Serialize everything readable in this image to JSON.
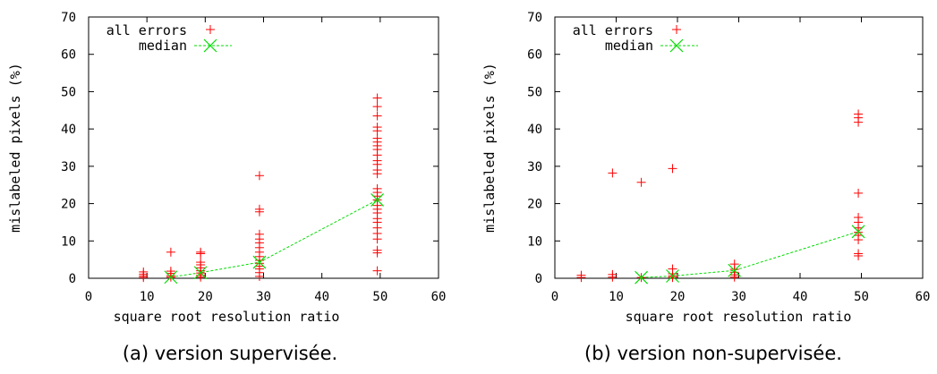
{
  "colors": {
    "errors": "#ff0000",
    "median": "#00dd00",
    "axis": "#000000"
  },
  "chart_data": [
    {
      "type": "scatter",
      "caption": "(a) version supervisée.",
      "xlabel": "square root resolution ratio",
      "ylabel": "mislabeled pixels (%)",
      "xlim": [
        0,
        60
      ],
      "ylim": [
        0,
        70
      ],
      "xticks": [
        0,
        10,
        20,
        30,
        40,
        50,
        60
      ],
      "yticks": [
        0,
        10,
        20,
        30,
        40,
        50,
        60,
        70
      ],
      "grid": false,
      "legend_position": "top-left",
      "series": [
        {
          "name": "all errors",
          "marker": "plus",
          "points": [
            [
              9.4,
              0.2
            ],
            [
              9.4,
              0.6
            ],
            [
              9.4,
              1.1
            ],
            [
              9.4,
              1.7
            ],
            [
              14.1,
              0.3
            ],
            [
              14.1,
              0.7
            ],
            [
              14.1,
              1.3
            ],
            [
              14.1,
              1.9
            ],
            [
              14.1,
              7.0
            ],
            [
              19.2,
              0.3
            ],
            [
              19.2,
              0.8
            ],
            [
              19.2,
              1.4
            ],
            [
              19.2,
              2.0
            ],
            [
              19.2,
              2.8
            ],
            [
              19.2,
              3.6
            ],
            [
              19.2,
              4.3
            ],
            [
              19.2,
              6.6
            ],
            [
              19.2,
              7.0
            ],
            [
              29.3,
              0.5
            ],
            [
              29.3,
              1.5
            ],
            [
              29.3,
              2.5
            ],
            [
              29.3,
              3.2
            ],
            [
              29.3,
              4.0
            ],
            [
              29.3,
              4.8
            ],
            [
              29.3,
              5.8
            ],
            [
              29.3,
              7.0
            ],
            [
              29.3,
              8.2
            ],
            [
              29.3,
              9.5
            ],
            [
              29.3,
              10.5
            ],
            [
              29.3,
              11.8
            ],
            [
              29.3,
              17.8
            ],
            [
              29.3,
              18.5
            ],
            [
              29.3,
              27.5
            ],
            [
              49.5,
              2.0
            ],
            [
              49.5,
              6.8
            ],
            [
              49.5,
              7.5
            ],
            [
              49.5,
              10.5
            ],
            [
              49.5,
              12.0
            ],
            [
              49.5,
              13.5
            ],
            [
              49.5,
              15.0
            ],
            [
              49.5,
              16.0
            ],
            [
              49.5,
              17.5
            ],
            [
              49.5,
              18.5
            ],
            [
              49.5,
              19.5
            ],
            [
              49.5,
              21.0
            ],
            [
              49.5,
              22.0
            ],
            [
              49.5,
              23.0
            ],
            [
              49.5,
              24.0
            ],
            [
              49.5,
              28.0
            ],
            [
              49.5,
              29.0
            ],
            [
              49.5,
              30.5
            ],
            [
              49.5,
              31.5
            ],
            [
              49.5,
              33.0
            ],
            [
              49.5,
              34.5
            ],
            [
              49.5,
              35.5
            ],
            [
              49.5,
              36.5
            ],
            [
              49.5,
              37.5
            ],
            [
              49.5,
              39.5
            ],
            [
              49.5,
              40.5
            ],
            [
              49.5,
              43.5
            ],
            [
              49.5,
              46.0
            ],
            [
              49.5,
              48.3
            ]
          ]
        },
        {
          "name": "median",
          "marker": "cross",
          "line": "dashed",
          "points": [
            [
              14.1,
              0.3
            ],
            [
              19.2,
              1.5
            ],
            [
              29.3,
              4.3
            ],
            [
              49.5,
              21.0
            ]
          ]
        }
      ]
    },
    {
      "type": "scatter",
      "caption": "(b) version non-supervisée.",
      "xlabel": "square root resolution ratio",
      "ylabel": "mislabeled pixels (%)",
      "xlim": [
        0,
        60
      ],
      "ylim": [
        0,
        70
      ],
      "xticks": [
        0,
        10,
        20,
        30,
        40,
        50,
        60
      ],
      "yticks": [
        0,
        10,
        20,
        30,
        40,
        50,
        60,
        70
      ],
      "grid": false,
      "legend_position": "top-left",
      "series": [
        {
          "name": "all errors",
          "marker": "plus",
          "points": [
            [
              4.3,
              0.2
            ],
            [
              4.3,
              0.8
            ],
            [
              9.4,
              0.3
            ],
            [
              9.4,
              1.0
            ],
            [
              9.4,
              28.2
            ],
            [
              14.1,
              0.2
            ],
            [
              14.1,
              25.7
            ],
            [
              19.2,
              0.2
            ],
            [
              19.2,
              0.6
            ],
            [
              19.2,
              1.2
            ],
            [
              19.2,
              2.5
            ],
            [
              19.2,
              29.4
            ],
            [
              29.3,
              0.3
            ],
            [
              29.3,
              0.9
            ],
            [
              29.3,
              1.6
            ],
            [
              29.3,
              2.4
            ],
            [
              29.3,
              3.8
            ],
            [
              49.5,
              6.0
            ],
            [
              49.5,
              6.6
            ],
            [
              49.5,
              10.3
            ],
            [
              49.5,
              11.5
            ],
            [
              49.5,
              12.3
            ],
            [
              49.5,
              13.5
            ],
            [
              49.5,
              15.0
            ],
            [
              49.5,
              16.3
            ],
            [
              49.5,
              22.8
            ],
            [
              49.5,
              41.8
            ],
            [
              49.5,
              43.0
            ],
            [
              49.5,
              44.0
            ]
          ]
        },
        {
          "name": "median",
          "marker": "cross",
          "line": "dashed",
          "points": [
            [
              14.1,
              0.2
            ],
            [
              19.2,
              0.6
            ],
            [
              29.3,
              2.1
            ],
            [
              49.5,
              12.5
            ]
          ]
        }
      ]
    }
  ]
}
